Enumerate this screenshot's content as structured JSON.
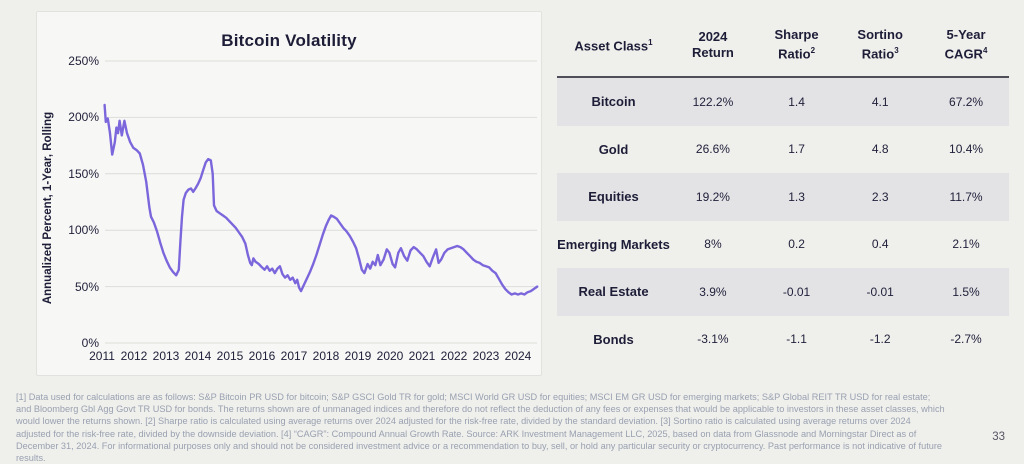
{
  "page": {
    "number": "33"
  },
  "chart": {
    "title": "Bitcoin Volatility",
    "y_axis_label": "Annualized Percent, 1-Year, Rolling",
    "line_color": "#7c66dc",
    "gridline_color": "#dcdcd9"
  },
  "chart_data": {
    "type": "line",
    "title": "Bitcoin Volatility",
    "ylabel": "Annualized Percent, 1-Year, Rolling",
    "series_name": "Bitcoin annualized 1-year rolling volatility (%)",
    "ylim": [
      0,
      250
    ],
    "yticks": [
      250,
      200,
      150,
      100,
      50,
      0
    ],
    "ytick_labels": [
      "250%",
      "200%",
      "150%",
      "100%",
      "50%",
      "0%"
    ],
    "xticks": [
      2011,
      2012,
      2013,
      2014,
      2015,
      2016,
      2017,
      2018,
      2019,
      2020,
      2021,
      2022,
      2023,
      2024
    ],
    "grid": true,
    "legend": "none",
    "points": [
      [
        2011.08,
        211
      ],
      [
        2011.12,
        196
      ],
      [
        2011.18,
        199
      ],
      [
        2011.25,
        186
      ],
      [
        2011.32,
        167
      ],
      [
        2011.4,
        178
      ],
      [
        2011.45,
        191
      ],
      [
        2011.5,
        186
      ],
      [
        2011.55,
        197
      ],
      [
        2011.62,
        184
      ],
      [
        2011.7,
        197
      ],
      [
        2011.78,
        186
      ],
      [
        2011.88,
        178
      ],
      [
        2011.98,
        173
      ],
      [
        2012.08,
        171
      ],
      [
        2012.18,
        168
      ],
      [
        2012.28,
        158
      ],
      [
        2012.38,
        143
      ],
      [
        2012.48,
        120
      ],
      [
        2012.53,
        112
      ],
      [
        2012.62,
        107
      ],
      [
        2012.72,
        99
      ],
      [
        2012.82,
        89
      ],
      [
        2012.92,
        80
      ],
      [
        2013.02,
        73
      ],
      [
        2013.12,
        67
      ],
      [
        2013.22,
        63
      ],
      [
        2013.32,
        60
      ],
      [
        2013.4,
        65
      ],
      [
        2013.45,
        90
      ],
      [
        2013.5,
        112
      ],
      [
        2013.55,
        127
      ],
      [
        2013.62,
        133
      ],
      [
        2013.7,
        136
      ],
      [
        2013.78,
        137
      ],
      [
        2013.85,
        134
      ],
      [
        2013.92,
        137
      ],
      [
        2014.0,
        141
      ],
      [
        2014.08,
        146
      ],
      [
        2014.16,
        153
      ],
      [
        2014.24,
        160
      ],
      [
        2014.32,
        163
      ],
      [
        2014.4,
        162
      ],
      [
        2014.46,
        150
      ],
      [
        2014.5,
        122
      ],
      [
        2014.58,
        117
      ],
      [
        2014.68,
        115
      ],
      [
        2014.78,
        113
      ],
      [
        2014.88,
        111
      ],
      [
        2014.98,
        108
      ],
      [
        2015.08,
        105
      ],
      [
        2015.18,
        102
      ],
      [
        2015.28,
        98
      ],
      [
        2015.38,
        94
      ],
      [
        2015.48,
        88
      ],
      [
        2015.56,
        78
      ],
      [
        2015.63,
        71
      ],
      [
        2015.68,
        69
      ],
      [
        2015.73,
        75
      ],
      [
        2015.8,
        72
      ],
      [
        2015.9,
        70
      ],
      [
        2016.0,
        67
      ],
      [
        2016.08,
        65
      ],
      [
        2016.16,
        68
      ],
      [
        2016.24,
        64
      ],
      [
        2016.32,
        66
      ],
      [
        2016.4,
        62
      ],
      [
        2016.48,
        66
      ],
      [
        2016.56,
        68
      ],
      [
        2016.64,
        61
      ],
      [
        2016.72,
        58
      ],
      [
        2016.8,
        60
      ],
      [
        2016.88,
        56
      ],
      [
        2016.96,
        58
      ],
      [
        2017.04,
        53
      ],
      [
        2017.1,
        56
      ],
      [
        2017.16,
        49
      ],
      [
        2017.22,
        46
      ],
      [
        2017.3,
        51
      ],
      [
        2017.4,
        57
      ],
      [
        2017.5,
        63
      ],
      [
        2017.6,
        70
      ],
      [
        2017.7,
        78
      ],
      [
        2017.8,
        87
      ],
      [
        2017.9,
        96
      ],
      [
        2018.0,
        104
      ],
      [
        2018.08,
        109
      ],
      [
        2018.16,
        113
      ],
      [
        2018.24,
        112
      ],
      [
        2018.34,
        110
      ],
      [
        2018.44,
        106
      ],
      [
        2018.54,
        102
      ],
      [
        2018.64,
        99
      ],
      [
        2018.74,
        95
      ],
      [
        2018.84,
        90
      ],
      [
        2018.94,
        84
      ],
      [
        2019.04,
        74
      ],
      [
        2019.12,
        65
      ],
      [
        2019.2,
        62
      ],
      [
        2019.3,
        70
      ],
      [
        2019.38,
        66
      ],
      [
        2019.46,
        72
      ],
      [
        2019.54,
        69
      ],
      [
        2019.62,
        78
      ],
      [
        2019.7,
        69
      ],
      [
        2019.8,
        74
      ],
      [
        2019.9,
        83
      ],
      [
        2019.98,
        80
      ],
      [
        2020.08,
        70
      ],
      [
        2020.16,
        67
      ],
      [
        2020.26,
        80
      ],
      [
        2020.34,
        84
      ],
      [
        2020.44,
        77
      ],
      [
        2020.54,
        73
      ],
      [
        2020.64,
        82
      ],
      [
        2020.74,
        85
      ],
      [
        2020.84,
        83
      ],
      [
        2020.94,
        80
      ],
      [
        2021.04,
        77
      ],
      [
        2021.14,
        72
      ],
      [
        2021.24,
        68
      ],
      [
        2021.34,
        76
      ],
      [
        2021.44,
        83
      ],
      [
        2021.52,
        71
      ],
      [
        2021.6,
        74
      ],
      [
        2021.7,
        80
      ],
      [
        2021.8,
        83
      ],
      [
        2021.9,
        84
      ],
      [
        2022.0,
        85
      ],
      [
        2022.1,
        86
      ],
      [
        2022.2,
        85
      ],
      [
        2022.3,
        83
      ],
      [
        2022.4,
        80
      ],
      [
        2022.5,
        77
      ],
      [
        2022.6,
        74
      ],
      [
        2022.7,
        72
      ],
      [
        2022.8,
        71
      ],
      [
        2022.9,
        69
      ],
      [
        2023.0,
        68
      ],
      [
        2023.1,
        67
      ],
      [
        2023.2,
        64
      ],
      [
        2023.3,
        62
      ],
      [
        2023.4,
        57
      ],
      [
        2023.5,
        52
      ],
      [
        2023.6,
        48
      ],
      [
        2023.7,
        45
      ],
      [
        2023.8,
        43
      ],
      [
        2023.9,
        44
      ],
      [
        2024.0,
        43
      ],
      [
        2024.1,
        44
      ],
      [
        2024.2,
        43
      ],
      [
        2024.3,
        45
      ],
      [
        2024.4,
        46
      ],
      [
        2024.5,
        48
      ],
      [
        2024.6,
        50
      ]
    ]
  },
  "table": {
    "columns": [
      {
        "lines": [
          "Asset Class"
        ],
        "sup": "1"
      },
      {
        "lines": [
          "2024",
          "Return"
        ],
        "sup": ""
      },
      {
        "lines": [
          "Sharpe",
          "Ratio"
        ],
        "sup": "2"
      },
      {
        "lines": [
          "Sortino",
          "Ratio"
        ],
        "sup": "3"
      },
      {
        "lines": [
          "5-Year",
          "CAGR"
        ],
        "sup": "4"
      }
    ],
    "rows": [
      {
        "asset": "Bitcoin",
        "values": [
          "122.2%",
          "1.4",
          "4.1",
          "67.2%"
        ],
        "shaded": true
      },
      {
        "asset": "Gold",
        "values": [
          "26.6%",
          "1.7",
          "4.8",
          "10.4%"
        ],
        "shaded": false
      },
      {
        "asset": "Equities",
        "values": [
          "19.2%",
          "1.3",
          "2.3",
          "11.7%"
        ],
        "shaded": true
      },
      {
        "asset": "Emerging Markets",
        "values": [
          "8%",
          "0.2",
          "0.4",
          "2.1%"
        ],
        "shaded": false
      },
      {
        "asset": "Real Estate",
        "values": [
          "3.9%",
          "-0.01",
          "-0.01",
          "1.5%"
        ],
        "shaded": true
      },
      {
        "asset": "Bonds",
        "values": [
          "-3.1%",
          "-1.1",
          "-1.2",
          "-2.7%"
        ],
        "shaded": false
      }
    ]
  },
  "footnote": "[1] Data used for calculations are as follows: S&P Bitcoin PR USD for bitcoin; S&P GSCI Gold TR for gold; MSCI World GR USD for equities; MSCI EM GR USD for emerging markets; S&P Global REIT TR USD for real estate; and Bloomberg Gbl Agg Govt TR USD for bonds. The returns shown are of unmanaged indices and therefore do not reflect the deduction of any fees or expenses that would be applicable to investors in these asset classes, which would lower the returns shown. [2] Sharpe ratio is calculated using average returns over 2024 adjusted for the risk-free rate, divided by the standard deviation. [3] Sortino ratio is calculated using average returns over 2024 adjusted for the risk-free rate, divided by the downside deviation. [4] “CAGR”: Compound Annual Growth Rate. Source: ARK Investment Management LLC, 2025, based on data from Glassnode and Morningstar Direct as of December 31, 2024. For informational purposes only and should not be considered investment advice or a recommendation to buy, sell, or hold any particular security or cryptocurrency. Past performance is not indicative of future results."
}
